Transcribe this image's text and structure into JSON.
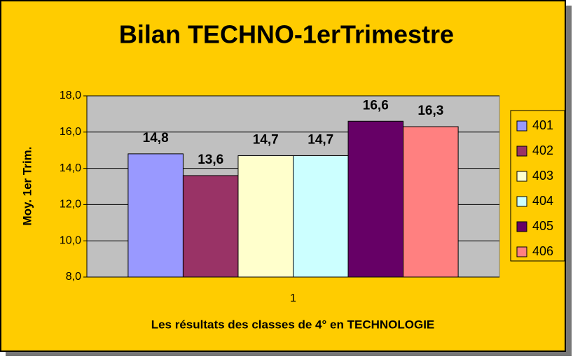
{
  "chart_data": {
    "type": "bar",
    "title": "Bilan TECHNO-1erTrimestre",
    "x_label": "Les résultats des classes de 4° en TECHNOLOGIE",
    "y_label": "Moy. 1er Trim.",
    "categories": [
      "1"
    ],
    "series": [
      {
        "name": "401",
        "color": "#9999FF",
        "values": [
          14.8
        ],
        "value_labels": [
          "14,8"
        ]
      },
      {
        "name": "402",
        "color": "#993366",
        "values": [
          13.6
        ],
        "value_labels": [
          "13,6"
        ]
      },
      {
        "name": "403",
        "color": "#FFFFCC",
        "values": [
          14.7
        ],
        "value_labels": [
          "14,7"
        ]
      },
      {
        "name": "404",
        "color": "#CCFFFF",
        "values": [
          14.7
        ],
        "value_labels": [
          "14,7"
        ]
      },
      {
        "name": "405",
        "color": "#660066",
        "values": [
          16.6
        ],
        "value_labels": [
          "16,6"
        ]
      },
      {
        "name": "406",
        "color": "#FF8080",
        "values": [
          16.3
        ],
        "value_labels": [
          "16,3"
        ]
      }
    ],
    "ylim": [
      8,
      18
    ],
    "yticks": [
      {
        "value": 8,
        "label": "8,0"
      },
      {
        "value": 10,
        "label": "10,0"
      },
      {
        "value": 12,
        "label": "12,0"
      },
      {
        "value": 14,
        "label": "14,0"
      },
      {
        "value": 16,
        "label": "16,0"
      },
      {
        "value": 18,
        "label": "18,0"
      }
    ],
    "grid": true,
    "legend": "right"
  }
}
